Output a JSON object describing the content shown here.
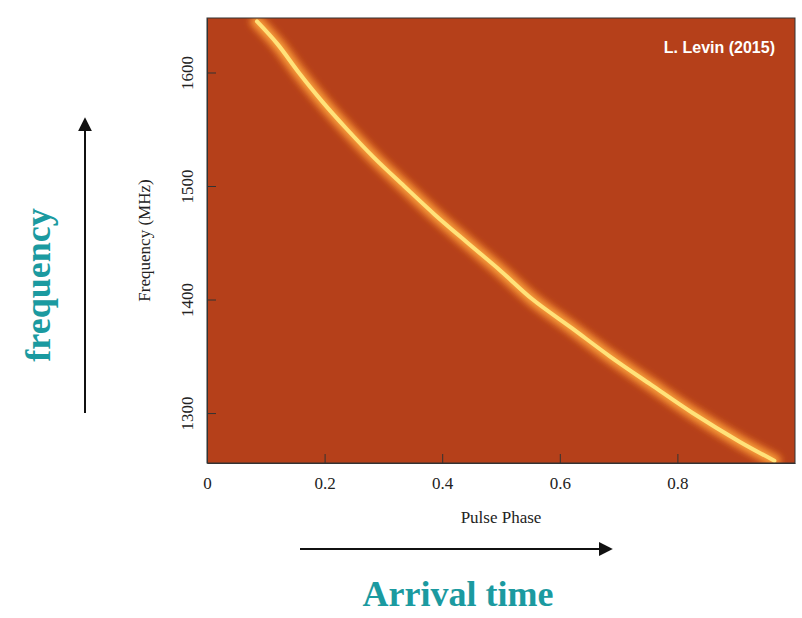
{
  "chart_data": {
    "type": "line",
    "x_label": "Pulse Phase",
    "y_label": "Frequency (MHz)",
    "annotations": [
      "L. Levin (2015)",
      "frequency",
      "Arrival time"
    ],
    "x": [
      0.085,
      0.12,
      0.156,
      0.195,
      0.238,
      0.284,
      0.335,
      0.387,
      0.443,
      0.5,
      0.554,
      0.62,
      0.685,
      0.755,
      0.826,
      0.905,
      0.965
    ],
    "values": [
      1645,
      1625,
      1600,
      1575,
      1550,
      1525,
      1500,
      1475,
      1450,
      1425,
      1400,
      1375,
      1350,
      1325,
      1300,
      1275,
      1258
    ],
    "color": "#ffe27a",
    "xlim": [
      0,
      1
    ],
    "ylim": [
      1256,
      1648
    ],
    "xticks": [
      0,
      0.2,
      0.4,
      0.6,
      0.8
    ],
    "yticks": [
      1300,
      1400,
      1500,
      1600
    ],
    "grid": false
  }
}
